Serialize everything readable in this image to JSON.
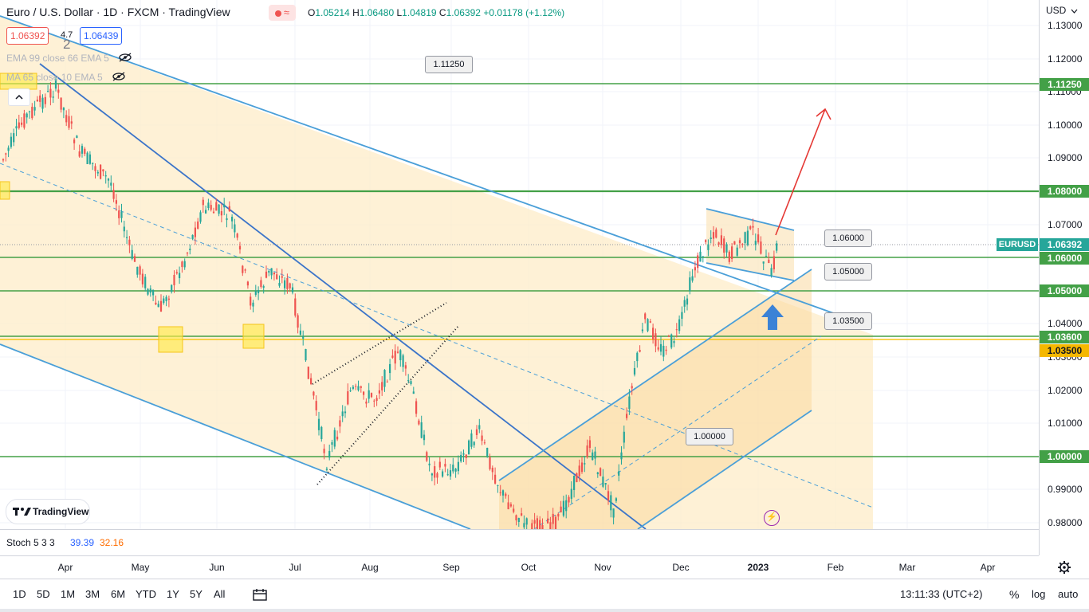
{
  "header": {
    "title": "Euro / U.S. Dollar · 1D · FXCM · TradingView",
    "ohlc": {
      "o_label": "O",
      "o": "1.05214",
      "h_label": "H",
      "h": "1.06480",
      "l_label": "L",
      "l": "1.04819",
      "c_label": "C",
      "c": "1.06392",
      "change": "+0.01178 (+1.12%)"
    },
    "sell_price": "1.06392",
    "spread": "4.7",
    "buy_price": "1.06439",
    "ribbon_glyph": "≈",
    "layer_count": "2"
  },
  "indicators": [
    {
      "label": "EMA 99 close 66 EMA 5"
    },
    {
      "label": "MA 65 close 10 EMA 5"
    }
  ],
  "oscillator": {
    "name": "Stoch 5 3 3",
    "k": "39.39",
    "d": "32.16",
    "k_color": "#2962ff",
    "d_color": "#ff6d00"
  },
  "price_scale": {
    "currency": "USD",
    "ticks": [
      "1.13000",
      "1.12000",
      "1.11000",
      "1.10000",
      "1.09000",
      "1.08000",
      "1.07000",
      "1.06000",
      "1.05000",
      "1.04000",
      "1.03000",
      "1.02000",
      "1.01000",
      "1.00000",
      "0.99000",
      "0.98000"
    ],
    "tags": [
      {
        "text": "1.11250",
        "color": "#43a047"
      },
      {
        "text": "1.08000",
        "color": "#43a047"
      },
      {
        "text": "1.06392",
        "color": "#26a69a"
      },
      {
        "text": "1.06000",
        "color": "#43a047"
      },
      {
        "text": "1.05000",
        "color": "#43a047"
      },
      {
        "text": "1.03600",
        "color": "#43a047"
      },
      {
        "text": "1.03500",
        "color": "#f5b800"
      },
      {
        "text": "1.00000",
        "color": "#43a047"
      }
    ],
    "symbol_tag": "EURUSD"
  },
  "callouts": [
    "1.11250",
    "1.06000",
    "1.05000",
    "1.03500",
    "1.00000"
  ],
  "time_axis": {
    "months": [
      {
        "label": "Apr"
      },
      {
        "label": "May"
      },
      {
        "label": "Jun"
      },
      {
        "label": "Jul"
      },
      {
        "label": "Aug"
      },
      {
        "label": "Sep"
      },
      {
        "label": "Oct"
      },
      {
        "label": "Nov"
      },
      {
        "label": "Dec"
      },
      {
        "label": "2023",
        "bold": true
      },
      {
        "label": "Feb"
      },
      {
        "label": "Mar"
      },
      {
        "label": "Apr"
      }
    ]
  },
  "bottom_toolbar": {
    "timeframes": [
      "1D",
      "5D",
      "1M",
      "3M",
      "6M",
      "YTD",
      "1Y",
      "5Y",
      "All"
    ],
    "clock": "13:11:33 (UTC+2)",
    "percent": "%",
    "log": "log",
    "auto": "auto"
  },
  "logo_text": "TradingView",
  "colors": {
    "up": "#26a69a",
    "down": "#ef5350",
    "level_line": "#43a047",
    "channel": "#4a9fd8",
    "fill": "#fdecc8",
    "highlight": "#ffe94a",
    "arrow_red": "#e53935",
    "arrow_blue": "#3b82d6"
  }
}
